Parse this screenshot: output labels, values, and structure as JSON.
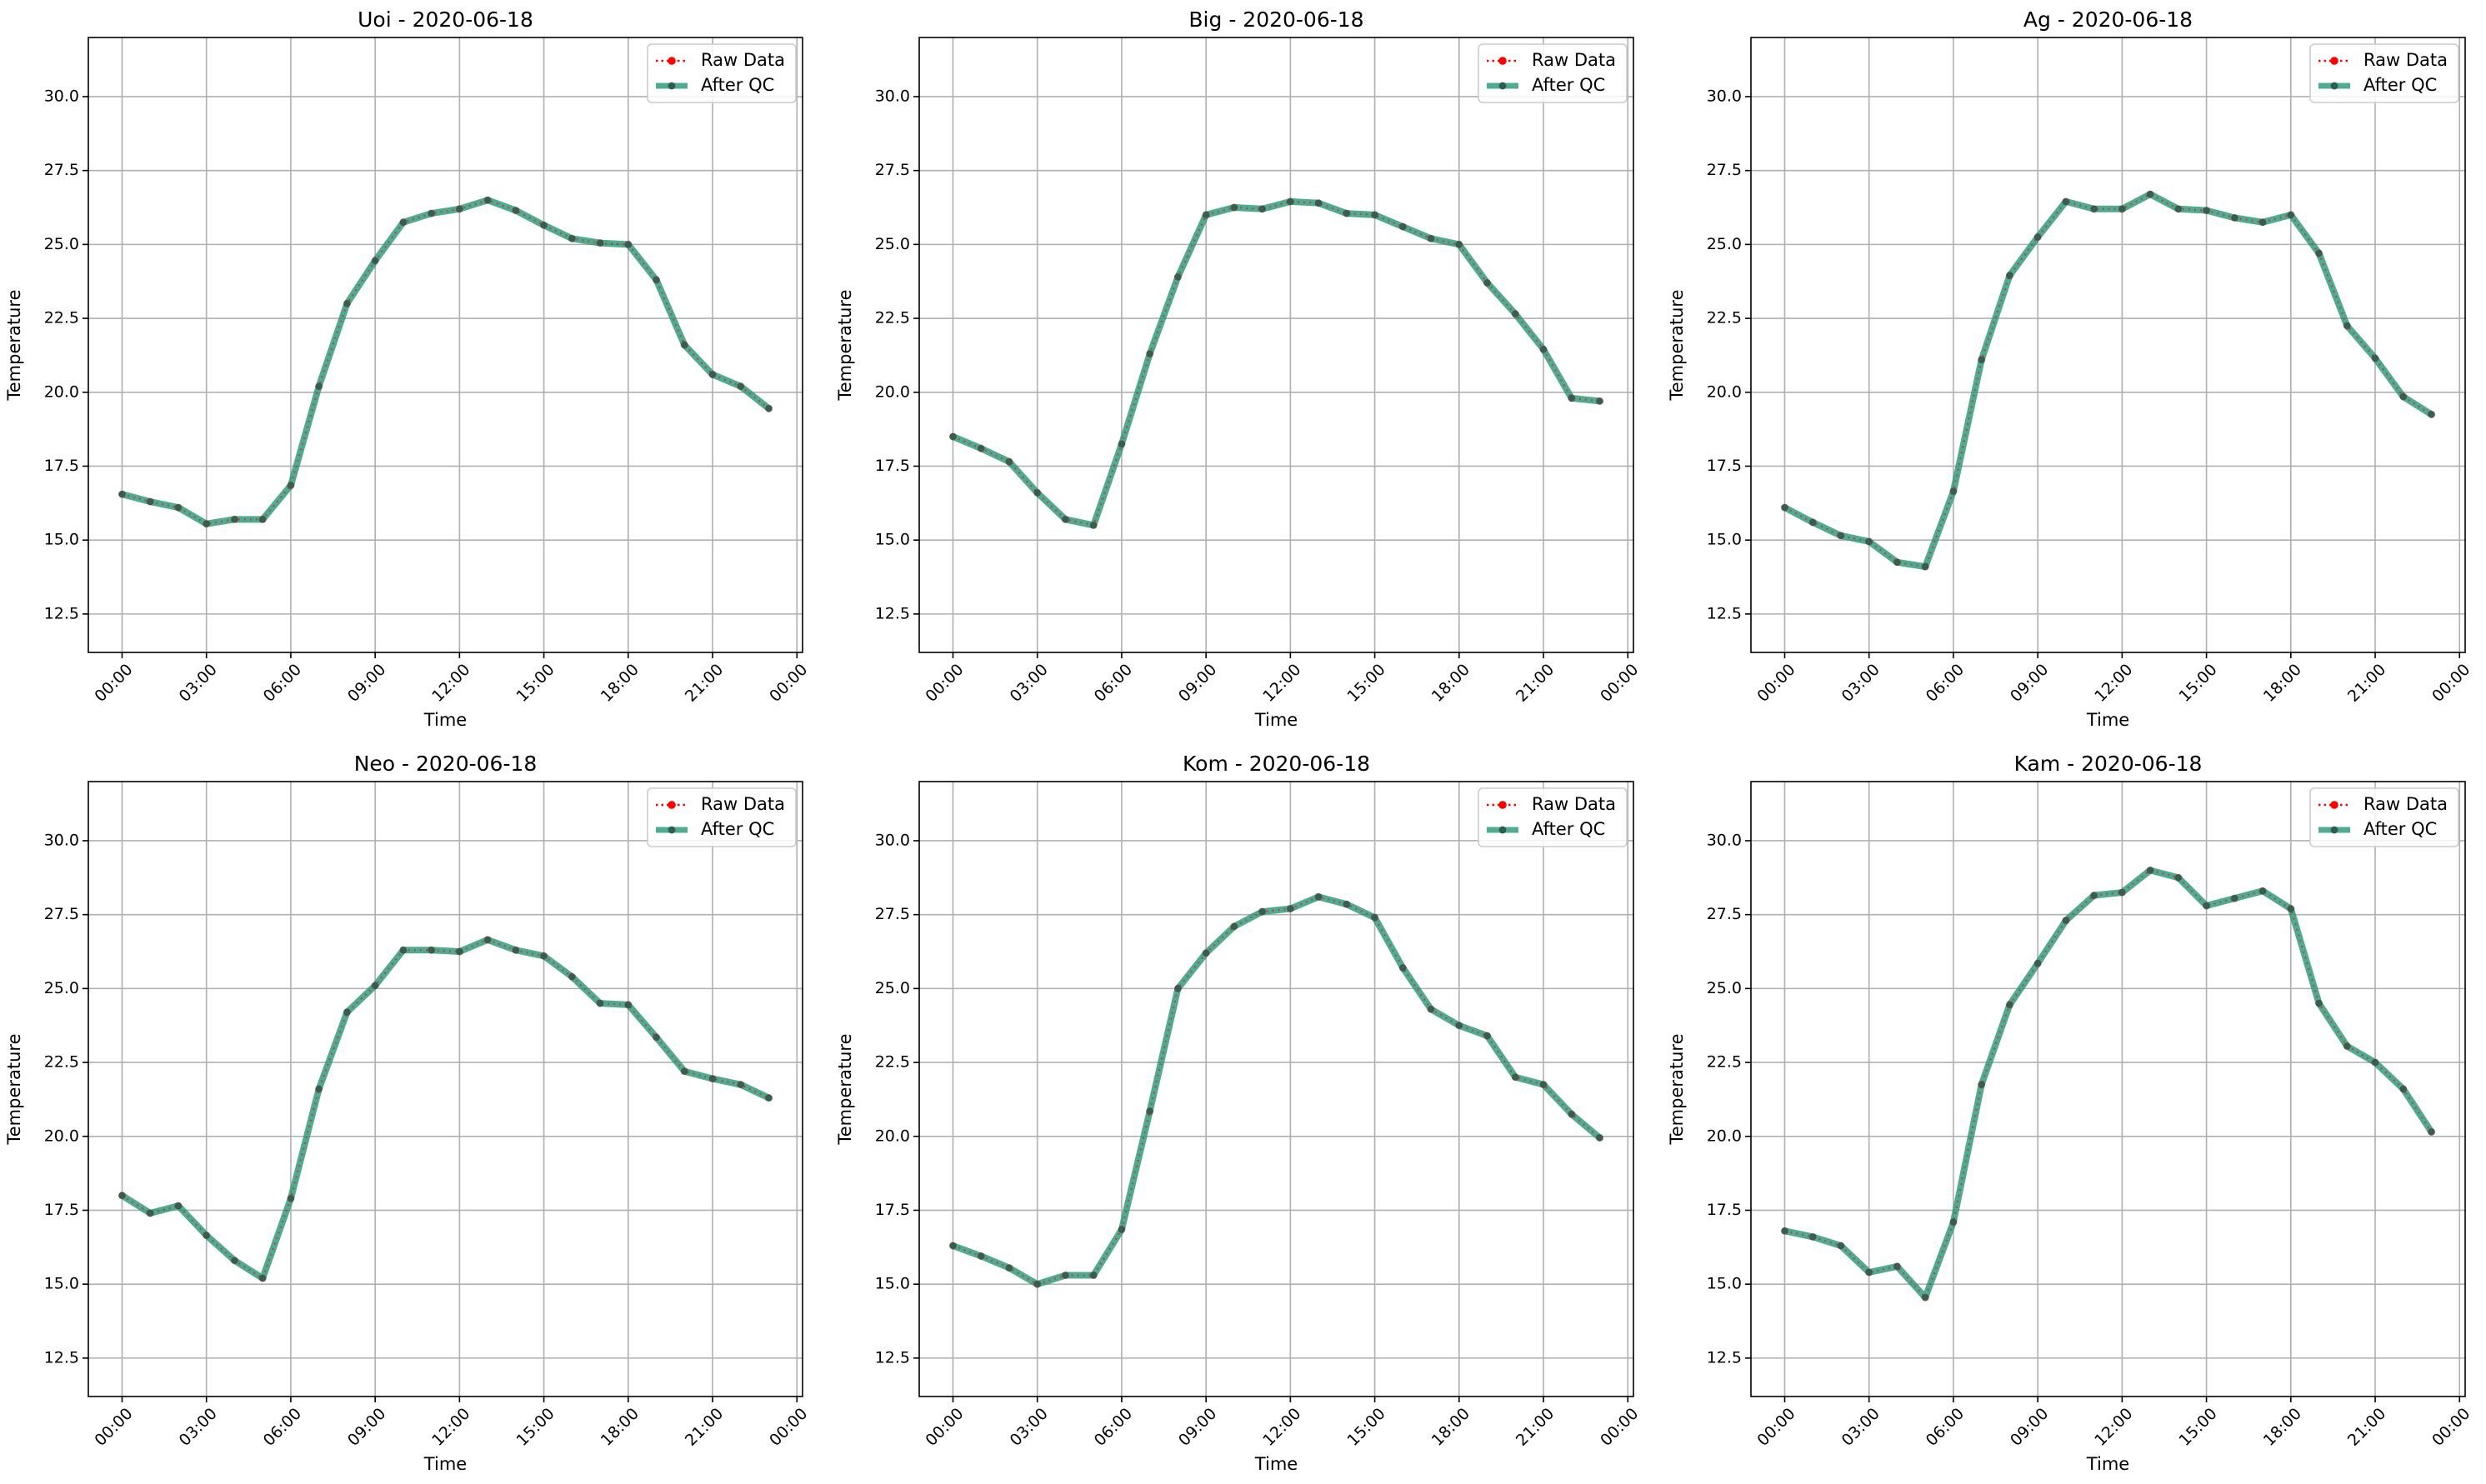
{
  "figure": {
    "background": "#ffffff"
  },
  "style": {
    "raw_color": "#ff0000",
    "qc_color": "#2a9a77",
    "point_color": "#2d5d50",
    "grid_color": "#b0b0b0"
  },
  "chart_data": [
    {
      "type": "line",
      "title": "Uoi - 2020-06-18",
      "xlabel": "Time",
      "ylabel": "Temperature",
      "xlim": [
        -1.2,
        24.2
      ],
      "ylim": [
        11.2,
        32.0
      ],
      "x_ticks": [
        0,
        3,
        6,
        9,
        12,
        15,
        18,
        21,
        24
      ],
      "x_tick_labels": [
        "00:00",
        "03:00",
        "06:00",
        "09:00",
        "12:00",
        "15:00",
        "18:00",
        "21:00",
        "00:00"
      ],
      "y_ticks": [
        12.5,
        15.0,
        17.5,
        20.0,
        22.5,
        25.0,
        27.5,
        30.0
      ],
      "y_tick_labels": [
        "12.5",
        "15.0",
        "17.5",
        "20.0",
        "22.5",
        "25.0",
        "27.5",
        "30.0"
      ],
      "grid": true,
      "legend": "upper-right",
      "x": [
        0,
        1,
        2,
        3,
        4,
        5,
        6,
        7,
        8,
        9,
        10,
        11,
        12,
        13,
        14,
        15,
        16,
        17,
        18,
        19,
        20,
        21,
        22,
        23
      ],
      "series": [
        {
          "name": "Raw Data",
          "values": [
            16.55,
            16.3,
            16.1,
            15.55,
            15.7,
            15.7,
            16.85,
            20.2,
            23.0,
            24.45,
            25.75,
            26.05,
            26.2,
            26.5,
            26.15,
            25.65,
            25.2,
            25.05,
            25.0,
            23.8,
            21.6,
            20.6,
            20.2,
            19.45
          ]
        },
        {
          "name": "After QC",
          "values": [
            16.55,
            16.3,
            16.1,
            15.55,
            15.7,
            15.7,
            16.85,
            20.2,
            23.0,
            24.45,
            25.75,
            26.05,
            26.2,
            26.5,
            26.15,
            25.65,
            25.2,
            25.05,
            25.0,
            23.8,
            21.6,
            20.6,
            20.2,
            19.45
          ]
        }
      ]
    },
    {
      "type": "line",
      "title": "Big - 2020-06-18",
      "xlabel": "Time",
      "ylabel": "Temperature",
      "xlim": [
        -1.2,
        24.2
      ],
      "ylim": [
        11.2,
        32.0
      ],
      "x_ticks": [
        0,
        3,
        6,
        9,
        12,
        15,
        18,
        21,
        24
      ],
      "x_tick_labels": [
        "00:00",
        "03:00",
        "06:00",
        "09:00",
        "12:00",
        "15:00",
        "18:00",
        "21:00",
        "00:00"
      ],
      "y_ticks": [
        12.5,
        15.0,
        17.5,
        20.0,
        22.5,
        25.0,
        27.5,
        30.0
      ],
      "y_tick_labels": [
        "12.5",
        "15.0",
        "17.5",
        "20.0",
        "22.5",
        "25.0",
        "27.5",
        "30.0"
      ],
      "grid": true,
      "legend": "upper-right",
      "x": [
        0,
        1,
        2,
        3,
        4,
        5,
        6,
        7,
        8,
        9,
        10,
        11,
        12,
        13,
        14,
        15,
        16,
        17,
        18,
        19,
        20,
        21,
        22,
        23
      ],
      "series": [
        {
          "name": "Raw Data",
          "values": [
            18.5,
            18.1,
            17.65,
            16.6,
            15.7,
            15.5,
            18.25,
            21.3,
            23.9,
            26.0,
            26.25,
            26.2,
            26.45,
            26.4,
            26.05,
            26.0,
            25.6,
            25.2,
            25.0,
            23.7,
            22.65,
            21.45,
            19.8,
            19.7
          ]
        },
        {
          "name": "After QC",
          "values": [
            18.5,
            18.1,
            17.65,
            16.6,
            15.7,
            15.5,
            18.25,
            21.3,
            23.9,
            26.0,
            26.25,
            26.2,
            26.45,
            26.4,
            26.05,
            26.0,
            25.6,
            25.2,
            25.0,
            23.7,
            22.65,
            21.45,
            19.8,
            19.7
          ]
        }
      ]
    },
    {
      "type": "line",
      "title": "Ag - 2020-06-18",
      "xlabel": "Time",
      "ylabel": "Temperature",
      "xlim": [
        -1.2,
        24.2
      ],
      "ylim": [
        11.2,
        32.0
      ],
      "x_ticks": [
        0,
        3,
        6,
        9,
        12,
        15,
        18,
        21,
        24
      ],
      "x_tick_labels": [
        "00:00",
        "03:00",
        "06:00",
        "09:00",
        "12:00",
        "15:00",
        "18:00",
        "21:00",
        "00:00"
      ],
      "y_ticks": [
        12.5,
        15.0,
        17.5,
        20.0,
        22.5,
        25.0,
        27.5,
        30.0
      ],
      "y_tick_labels": [
        "12.5",
        "15.0",
        "17.5",
        "20.0",
        "22.5",
        "25.0",
        "27.5",
        "30.0"
      ],
      "grid": true,
      "legend": "upper-right",
      "x": [
        0,
        1,
        2,
        3,
        4,
        5,
        6,
        7,
        8,
        9,
        10,
        11,
        12,
        13,
        14,
        15,
        16,
        17,
        18,
        19,
        20,
        21,
        22,
        23
      ],
      "series": [
        {
          "name": "Raw Data",
          "values": [
            16.1,
            15.6,
            15.15,
            14.95,
            14.25,
            14.1,
            16.65,
            21.1,
            23.95,
            25.25,
            26.45,
            26.2,
            26.2,
            26.7,
            26.2,
            26.15,
            25.9,
            25.75,
            26.0,
            24.7,
            22.25,
            21.15,
            19.85,
            19.25
          ]
        },
        {
          "name": "After QC",
          "values": [
            16.1,
            15.6,
            15.15,
            14.95,
            14.25,
            14.1,
            16.65,
            21.1,
            23.95,
            25.25,
            26.45,
            26.2,
            26.2,
            26.7,
            26.2,
            26.15,
            25.9,
            25.75,
            26.0,
            24.7,
            22.25,
            21.15,
            19.85,
            19.25
          ]
        }
      ]
    },
    {
      "type": "line",
      "title": "Neo - 2020-06-18",
      "xlabel": "Time",
      "ylabel": "Temperature",
      "xlim": [
        -1.2,
        24.2
      ],
      "ylim": [
        11.2,
        32.0
      ],
      "x_ticks": [
        0,
        3,
        6,
        9,
        12,
        15,
        18,
        21,
        24
      ],
      "x_tick_labels": [
        "00:00",
        "03:00",
        "06:00",
        "09:00",
        "12:00",
        "15:00",
        "18:00",
        "21:00",
        "00:00"
      ],
      "y_ticks": [
        12.5,
        15.0,
        17.5,
        20.0,
        22.5,
        25.0,
        27.5,
        30.0
      ],
      "y_tick_labels": [
        "12.5",
        "15.0",
        "17.5",
        "20.0",
        "22.5",
        "25.0",
        "27.5",
        "30.0"
      ],
      "grid": true,
      "legend": "upper-right",
      "x": [
        0,
        1,
        2,
        3,
        4,
        5,
        6,
        7,
        8,
        9,
        10,
        11,
        12,
        13,
        14,
        15,
        16,
        17,
        18,
        19,
        20,
        21,
        22,
        23
      ],
      "series": [
        {
          "name": "Raw Data",
          "values": [
            18.0,
            17.4,
            17.65,
            16.65,
            15.8,
            15.2,
            17.9,
            21.6,
            24.2,
            25.1,
            26.3,
            26.3,
            26.25,
            26.65,
            26.3,
            26.1,
            25.4,
            24.5,
            24.45,
            23.35,
            22.2,
            21.95,
            21.75,
            21.3
          ]
        },
        {
          "name": "After QC",
          "values": [
            18.0,
            17.4,
            17.65,
            16.65,
            15.8,
            15.2,
            17.9,
            21.6,
            24.2,
            25.1,
            26.3,
            26.3,
            26.25,
            26.65,
            26.3,
            26.1,
            25.4,
            24.5,
            24.45,
            23.35,
            22.2,
            21.95,
            21.75,
            21.3
          ]
        }
      ]
    },
    {
      "type": "line",
      "title": "Kom - 2020-06-18",
      "xlabel": "Time",
      "ylabel": "Temperature",
      "xlim": [
        -1.2,
        24.2
      ],
      "ylim": [
        11.2,
        32.0
      ],
      "x_ticks": [
        0,
        3,
        6,
        9,
        12,
        15,
        18,
        21,
        24
      ],
      "x_tick_labels": [
        "00:00",
        "03:00",
        "06:00",
        "09:00",
        "12:00",
        "15:00",
        "18:00",
        "21:00",
        "00:00"
      ],
      "y_ticks": [
        12.5,
        15.0,
        17.5,
        20.0,
        22.5,
        25.0,
        27.5,
        30.0
      ],
      "y_tick_labels": [
        "12.5",
        "15.0",
        "17.5",
        "20.0",
        "22.5",
        "25.0",
        "27.5",
        "30.0"
      ],
      "grid": true,
      "legend": "upper-right",
      "x": [
        0,
        1,
        2,
        3,
        4,
        5,
        6,
        7,
        8,
        9,
        10,
        11,
        12,
        13,
        14,
        15,
        16,
        17,
        18,
        19,
        20,
        21,
        22,
        23
      ],
      "series": [
        {
          "name": "Raw Data",
          "values": [
            16.3,
            15.95,
            15.55,
            15.0,
            15.3,
            15.3,
            16.85,
            20.85,
            25.0,
            26.2,
            27.1,
            27.6,
            27.7,
            28.1,
            27.85,
            27.4,
            25.7,
            24.3,
            23.75,
            23.4,
            22.0,
            21.75,
            20.75,
            19.95
          ]
        },
        {
          "name": "After QC",
          "values": [
            16.3,
            15.95,
            15.55,
            15.0,
            15.3,
            15.3,
            16.85,
            20.85,
            25.0,
            26.2,
            27.1,
            27.6,
            27.7,
            28.1,
            27.85,
            27.4,
            25.7,
            24.3,
            23.75,
            23.4,
            22.0,
            21.75,
            20.75,
            19.95
          ]
        }
      ]
    },
    {
      "type": "line",
      "title": "Kam - 2020-06-18",
      "xlabel": "Time",
      "ylabel": "Temperature",
      "xlim": [
        -1.2,
        24.2
      ],
      "ylim": [
        11.2,
        32.0
      ],
      "x_ticks": [
        0,
        3,
        6,
        9,
        12,
        15,
        18,
        21,
        24
      ],
      "x_tick_labels": [
        "00:00",
        "03:00",
        "06:00",
        "09:00",
        "12:00",
        "15:00",
        "18:00",
        "21:00",
        "00:00"
      ],
      "y_ticks": [
        12.5,
        15.0,
        17.5,
        20.0,
        22.5,
        25.0,
        27.5,
        30.0
      ],
      "y_tick_labels": [
        "12.5",
        "15.0",
        "17.5",
        "20.0",
        "22.5",
        "25.0",
        "27.5",
        "30.0"
      ],
      "grid": true,
      "legend": "upper-right",
      "x": [
        0,
        1,
        2,
        3,
        4,
        5,
        6,
        7,
        8,
        9,
        10,
        11,
        12,
        13,
        14,
        15,
        16,
        17,
        18,
        19,
        20,
        21,
        22,
        23
      ],
      "series": [
        {
          "name": "Raw Data",
          "values": [
            16.8,
            16.6,
            16.3,
            15.4,
            15.6,
            14.55,
            17.1,
            21.75,
            24.45,
            25.85,
            27.3,
            28.15,
            28.25,
            29.0,
            28.75,
            27.8,
            28.05,
            28.3,
            27.7,
            24.5,
            23.05,
            22.5,
            21.6,
            20.15
          ]
        },
        {
          "name": "After QC",
          "values": [
            16.8,
            16.6,
            16.3,
            15.4,
            15.6,
            14.55,
            17.1,
            21.75,
            24.45,
            25.85,
            27.3,
            28.15,
            28.25,
            29.0,
            28.75,
            27.8,
            28.05,
            28.3,
            27.7,
            24.5,
            23.05,
            22.5,
            21.6,
            20.15
          ]
        }
      ]
    }
  ]
}
